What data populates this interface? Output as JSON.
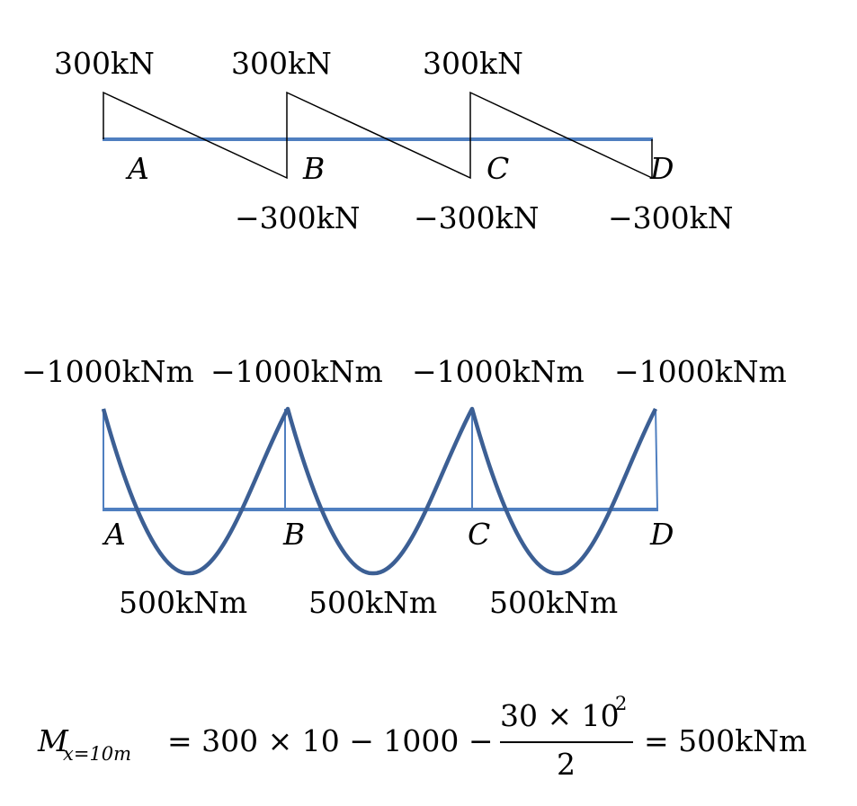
{
  "shear": {
    "top_labels": [
      "300kN",
      "300kN",
      "300kN"
    ],
    "bottom_labels": [
      "−300kN",
      "−300kN",
      "−300kN"
    ],
    "supports": [
      "A",
      "B",
      "C",
      "D"
    ]
  },
  "moment": {
    "top_labels": [
      "−1000kNm",
      "−1000kNm",
      "−1000kNm",
      "−1000kNm"
    ],
    "bottom_labels": [
      "500kNm",
      "500kNm",
      "500kNm"
    ],
    "supports": [
      "A",
      "B",
      "C",
      "D"
    ]
  },
  "equation": {
    "M": "M",
    "subscript": "x=10m",
    "lhs": "= 300 × 10 − 1000 −",
    "numerator": "30 × 10",
    "exponent": "2",
    "denominator": "2",
    "rhs": "= 500kNm"
  },
  "colors": {
    "beam": "#4f7fc0",
    "moment_curve": "#3c5f94",
    "shear_line": "#000000"
  }
}
